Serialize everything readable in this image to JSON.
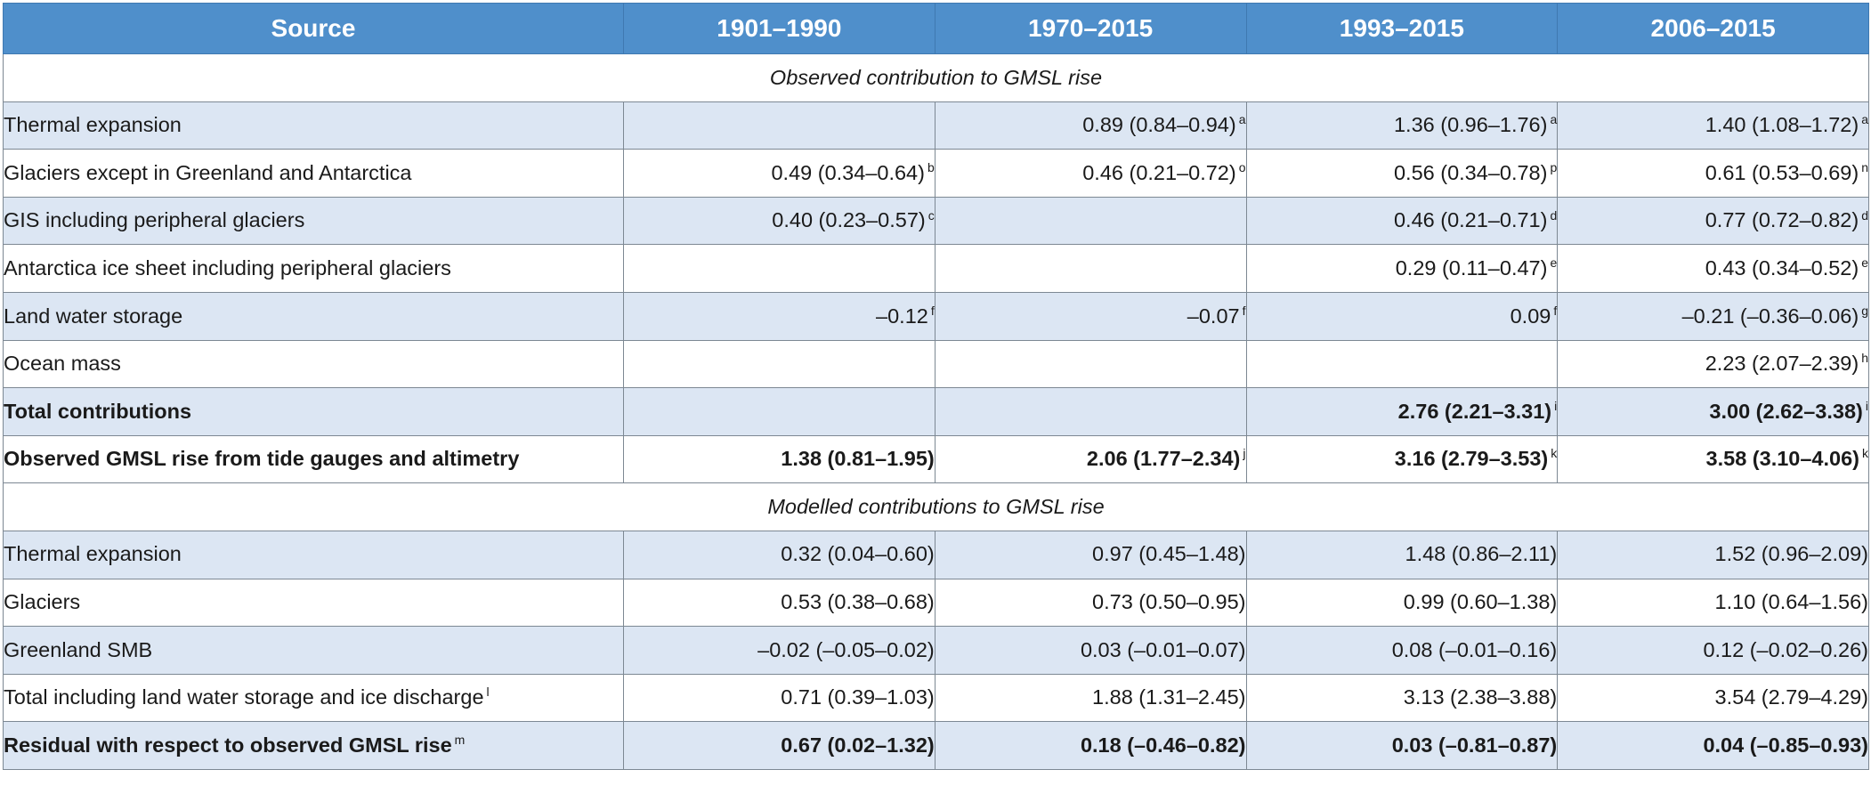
{
  "table": {
    "headers": [
      "Source",
      "1901–1990",
      "1970–2015",
      "1993–2015",
      "2006–2015"
    ],
    "sections": [
      {
        "title": "Observed contribution to GMSL rise",
        "rows": [
          {
            "source": "Thermal expansion",
            "source_note": "",
            "bold": false,
            "cells": [
              {
                "value": "",
                "note": ""
              },
              {
                "value": "0.89 (0.84–0.94)",
                "note": "a"
              },
              {
                "value": "1.36 (0.96–1.76)",
                "note": "a"
              },
              {
                "value": "1.40 (1.08–1.72)",
                "note": "a"
              }
            ]
          },
          {
            "source": "Glaciers except in Greenland and Antarctica",
            "source_note": "",
            "bold": false,
            "cells": [
              {
                "value": "0.49 (0.34–0.64)",
                "note": "b"
              },
              {
                "value": "0.46 (0.21–0.72)",
                "note": "o"
              },
              {
                "value": "0.56 (0.34–0.78)",
                "note": "p"
              },
              {
                "value": "0.61 (0.53–0.69)",
                "note": "n"
              }
            ]
          },
          {
            "source": "GIS including peripheral glaciers",
            "source_note": "",
            "bold": false,
            "cells": [
              {
                "value": "0.40 (0.23–0.57)",
                "note": "c"
              },
              {
                "value": "",
                "note": ""
              },
              {
                "value": "0.46 (0.21–0.71)",
                "note": "d"
              },
              {
                "value": "0.77 (0.72–0.82)",
                "note": "d"
              }
            ]
          },
          {
            "source": "Antarctica ice sheet including peripheral glaciers",
            "source_note": "",
            "bold": false,
            "cells": [
              {
                "value": "",
                "note": ""
              },
              {
                "value": "",
                "note": ""
              },
              {
                "value": "0.29 (0.11–0.47)",
                "note": "e"
              },
              {
                "value": "0.43 (0.34–0.52)",
                "note": "e"
              }
            ]
          },
          {
            "source": "Land water storage",
            "source_note": "",
            "bold": false,
            "cells": [
              {
                "value": "–0.12",
                "note": "f"
              },
              {
                "value": "–0.07",
                "note": "f"
              },
              {
                "value": "0.09",
                "note": "f"
              },
              {
                "value": "–0.21 (–0.36–0.06)",
                "note": "g"
              }
            ]
          },
          {
            "source": "Ocean mass",
            "source_note": "",
            "bold": false,
            "cells": [
              {
                "value": "",
                "note": ""
              },
              {
                "value": "",
                "note": ""
              },
              {
                "value": "",
                "note": ""
              },
              {
                "value": "2.23 (2.07–2.39)",
                "note": "h"
              }
            ]
          },
          {
            "source": "Total contributions",
            "source_note": "",
            "bold": true,
            "cells": [
              {
                "value": "",
                "note": ""
              },
              {
                "value": "",
                "note": ""
              },
              {
                "value": "2.76 (2.21–3.31)",
                "note": "i"
              },
              {
                "value": "3.00 (2.62–3.38)",
                "note": "i"
              }
            ]
          },
          {
            "source": "Observed GMSL rise from tide gauges and altimetry",
            "source_note": "",
            "bold": true,
            "cells": [
              {
                "value": "1.38 (0.81–1.95)",
                "note": ""
              },
              {
                "value": "2.06 (1.77–2.34)",
                "note": "j"
              },
              {
                "value": "3.16 (2.79–3.53)",
                "note": "k"
              },
              {
                "value": "3.58 (3.10–4.06)",
                "note": "k"
              }
            ]
          }
        ]
      },
      {
        "title": "Modelled contributions to GMSL rise",
        "rows": [
          {
            "source": "Thermal expansion",
            "source_note": "",
            "bold": false,
            "cells": [
              {
                "value": "0.32 (0.04–0.60)",
                "note": ""
              },
              {
                "value": "0.97 (0.45–1.48)",
                "note": ""
              },
              {
                "value": "1.48 (0.86–2.11)",
                "note": ""
              },
              {
                "value": "1.52 (0.96–2.09)",
                "note": ""
              }
            ]
          },
          {
            "source": "Glaciers",
            "source_note": "",
            "bold": false,
            "cells": [
              {
                "value": "0.53 (0.38–0.68)",
                "note": ""
              },
              {
                "value": "0.73 (0.50–0.95)",
                "note": ""
              },
              {
                "value": "0.99 (0.60–1.38)",
                "note": ""
              },
              {
                "value": "1.10 (0.64–1.56)",
                "note": ""
              }
            ]
          },
          {
            "source": "Greenland SMB",
            "source_note": "",
            "bold": false,
            "cells": [
              {
                "value": "–0.02 (–0.05–0.02)",
                "note": ""
              },
              {
                "value": "0.03 (–0.01–0.07)",
                "note": ""
              },
              {
                "value": "0.08 (–0.01–0.16)",
                "note": ""
              },
              {
                "value": "0.12 (–0.02–0.26)",
                "note": ""
              }
            ]
          },
          {
            "source": "Total including land water storage and ice discharge",
            "source_note": "l",
            "bold": false,
            "cells": [
              {
                "value": "0.71 (0.39–1.03)",
                "note": ""
              },
              {
                "value": "1.88 (1.31–2.45)",
                "note": ""
              },
              {
                "value": "3.13 (2.38–3.88)",
                "note": ""
              },
              {
                "value": "3.54 (2.79–4.29)",
                "note": ""
              }
            ]
          },
          {
            "source": "Residual with respect to observed GMSL rise",
            "source_note": "m",
            "bold": true,
            "cells": [
              {
                "value": "0.67 (0.02–1.32)",
                "note": ""
              },
              {
                "value": "0.18 (–0.46–0.82)",
                "note": ""
              },
              {
                "value": "0.03 (–0.81–0.87)",
                "note": ""
              },
              {
                "value": "0.04 (–0.85–0.93)",
                "note": ""
              }
            ]
          }
        ]
      }
    ]
  }
}
